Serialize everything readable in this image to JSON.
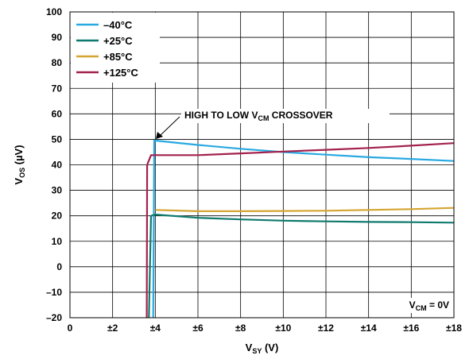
{
  "chart_data": {
    "type": "line",
    "xlabel_main": "V",
    "xlabel_sub": "SY",
    "xlabel_unit": " (V)",
    "ylabel_main": "V",
    "ylabel_sub": "OS",
    "ylabel_unit": " (µV)",
    "xlim": [
      0,
      18
    ],
    "ylim": [
      -20,
      100
    ],
    "x_ticks": [
      0,
      2,
      4,
      6,
      8,
      10,
      12,
      14,
      16,
      18
    ],
    "x_tick_labels": [
      "0",
      "±2",
      "±4",
      "±6",
      "±8",
      "±10",
      "±12",
      "±14",
      "±16",
      "±18"
    ],
    "y_ticks": [
      -20,
      -10,
      0,
      10,
      20,
      30,
      40,
      50,
      60,
      70,
      80,
      90,
      100
    ],
    "y_tick_labels": [
      "–20",
      "–10",
      "0",
      "10",
      "20",
      "30",
      "40",
      "50",
      "60",
      "70",
      "80",
      "90",
      "100"
    ],
    "grid": true,
    "legend_position": "top-left",
    "series": [
      {
        "name": "–40°C",
        "color": "#29a9e1",
        "points": [
          [
            3.9,
            -20
          ],
          [
            3.95,
            49.5
          ],
          [
            4.0,
            49.5
          ],
          [
            6,
            47.8
          ],
          [
            8,
            46.3
          ],
          [
            10,
            45
          ],
          [
            12,
            44
          ],
          [
            14,
            43
          ],
          [
            16,
            42.3
          ],
          [
            18,
            41.5
          ]
        ]
      },
      {
        "name": "+25°C",
        "color": "#0e7a6e",
        "points": [
          [
            3.7,
            -20
          ],
          [
            3.8,
            20
          ],
          [
            4.0,
            20.5
          ],
          [
            6,
            19.2
          ],
          [
            8,
            18.6
          ],
          [
            10,
            18.1
          ],
          [
            12,
            17.8
          ],
          [
            14,
            17.6
          ],
          [
            16,
            17.5
          ],
          [
            18,
            17.3
          ]
        ]
      },
      {
        "name": "+85°C",
        "color": "#d4a530",
        "points": [
          [
            4.0,
            22.3
          ],
          [
            6,
            21.8
          ],
          [
            8,
            21.8
          ],
          [
            10,
            21.9
          ],
          [
            12,
            22
          ],
          [
            14,
            22.3
          ],
          [
            16,
            22.6
          ],
          [
            18,
            23.1
          ]
        ]
      },
      {
        "name": "+125°C",
        "color": "#a3214d",
        "points": [
          [
            3.6,
            -20
          ],
          [
            3.62,
            40
          ],
          [
            3.8,
            43.8
          ],
          [
            4.0,
            43.8
          ],
          [
            6,
            43.8
          ],
          [
            8,
            44.5
          ],
          [
            10,
            45.2
          ],
          [
            12,
            45.9
          ],
          [
            14,
            46.6
          ],
          [
            16,
            47.5
          ],
          [
            18,
            48.5
          ]
        ]
      }
    ],
    "annotations": {
      "crossover_main": "HIGH TO LOW V",
      "crossover_sub": "CM",
      "crossover_rest": " CROSSOVER",
      "crossover_point": [
        3.95,
        49.5
      ],
      "condition_main": "V",
      "condition_sub": "CM",
      "condition_rest": " = 0V"
    }
  }
}
